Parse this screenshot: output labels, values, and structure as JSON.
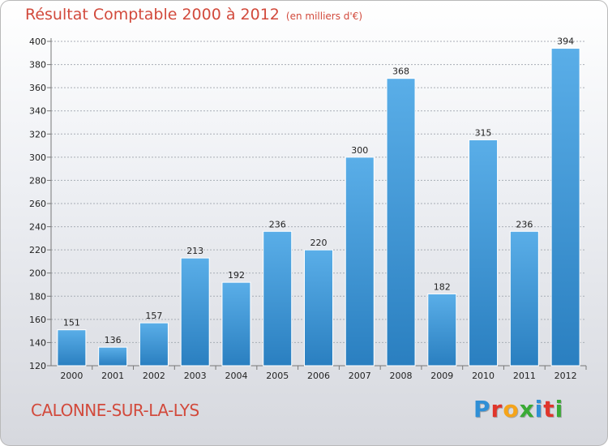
{
  "header": {
    "title": "Résultat Comptable 2000 à 2012",
    "subtitle": "(en milliers d'€)"
  },
  "footer": {
    "city": "CALONNE-SUR-LA-LYS",
    "brand": [
      "P",
      "r",
      "o",
      "x",
      "i",
      "t",
      "i"
    ],
    "brand_colors": [
      "#2f8fd6",
      "#e0352b",
      "#f5a41a",
      "#3aaa35",
      "#2f8fd6",
      "#e0352b",
      "#3aaa35"
    ]
  },
  "colors": {
    "bar_light": "#5aaee8",
    "bar_dark": "#2a7fc0",
    "grid": "#a8adb5",
    "text": "#222222",
    "accent": "#d24a3c"
  },
  "chart_data": {
    "type": "bar",
    "title": "Résultat Comptable 2000 à 2012",
    "subtitle": "(en milliers d'€)",
    "xlabel": "",
    "ylabel": "",
    "categories": [
      "2000",
      "2001",
      "2002",
      "2003",
      "2004",
      "2005",
      "2006",
      "2007",
      "2008",
      "2009",
      "2010",
      "2011",
      "2012"
    ],
    "values": [
      151,
      136,
      157,
      213,
      192,
      236,
      220,
      300,
      368,
      182,
      315,
      236,
      394
    ],
    "ylim": [
      120,
      400
    ],
    "yticks": [
      120,
      140,
      160,
      180,
      200,
      220,
      240,
      260,
      280,
      300,
      320,
      340,
      360,
      380,
      400
    ],
    "grid": true
  }
}
